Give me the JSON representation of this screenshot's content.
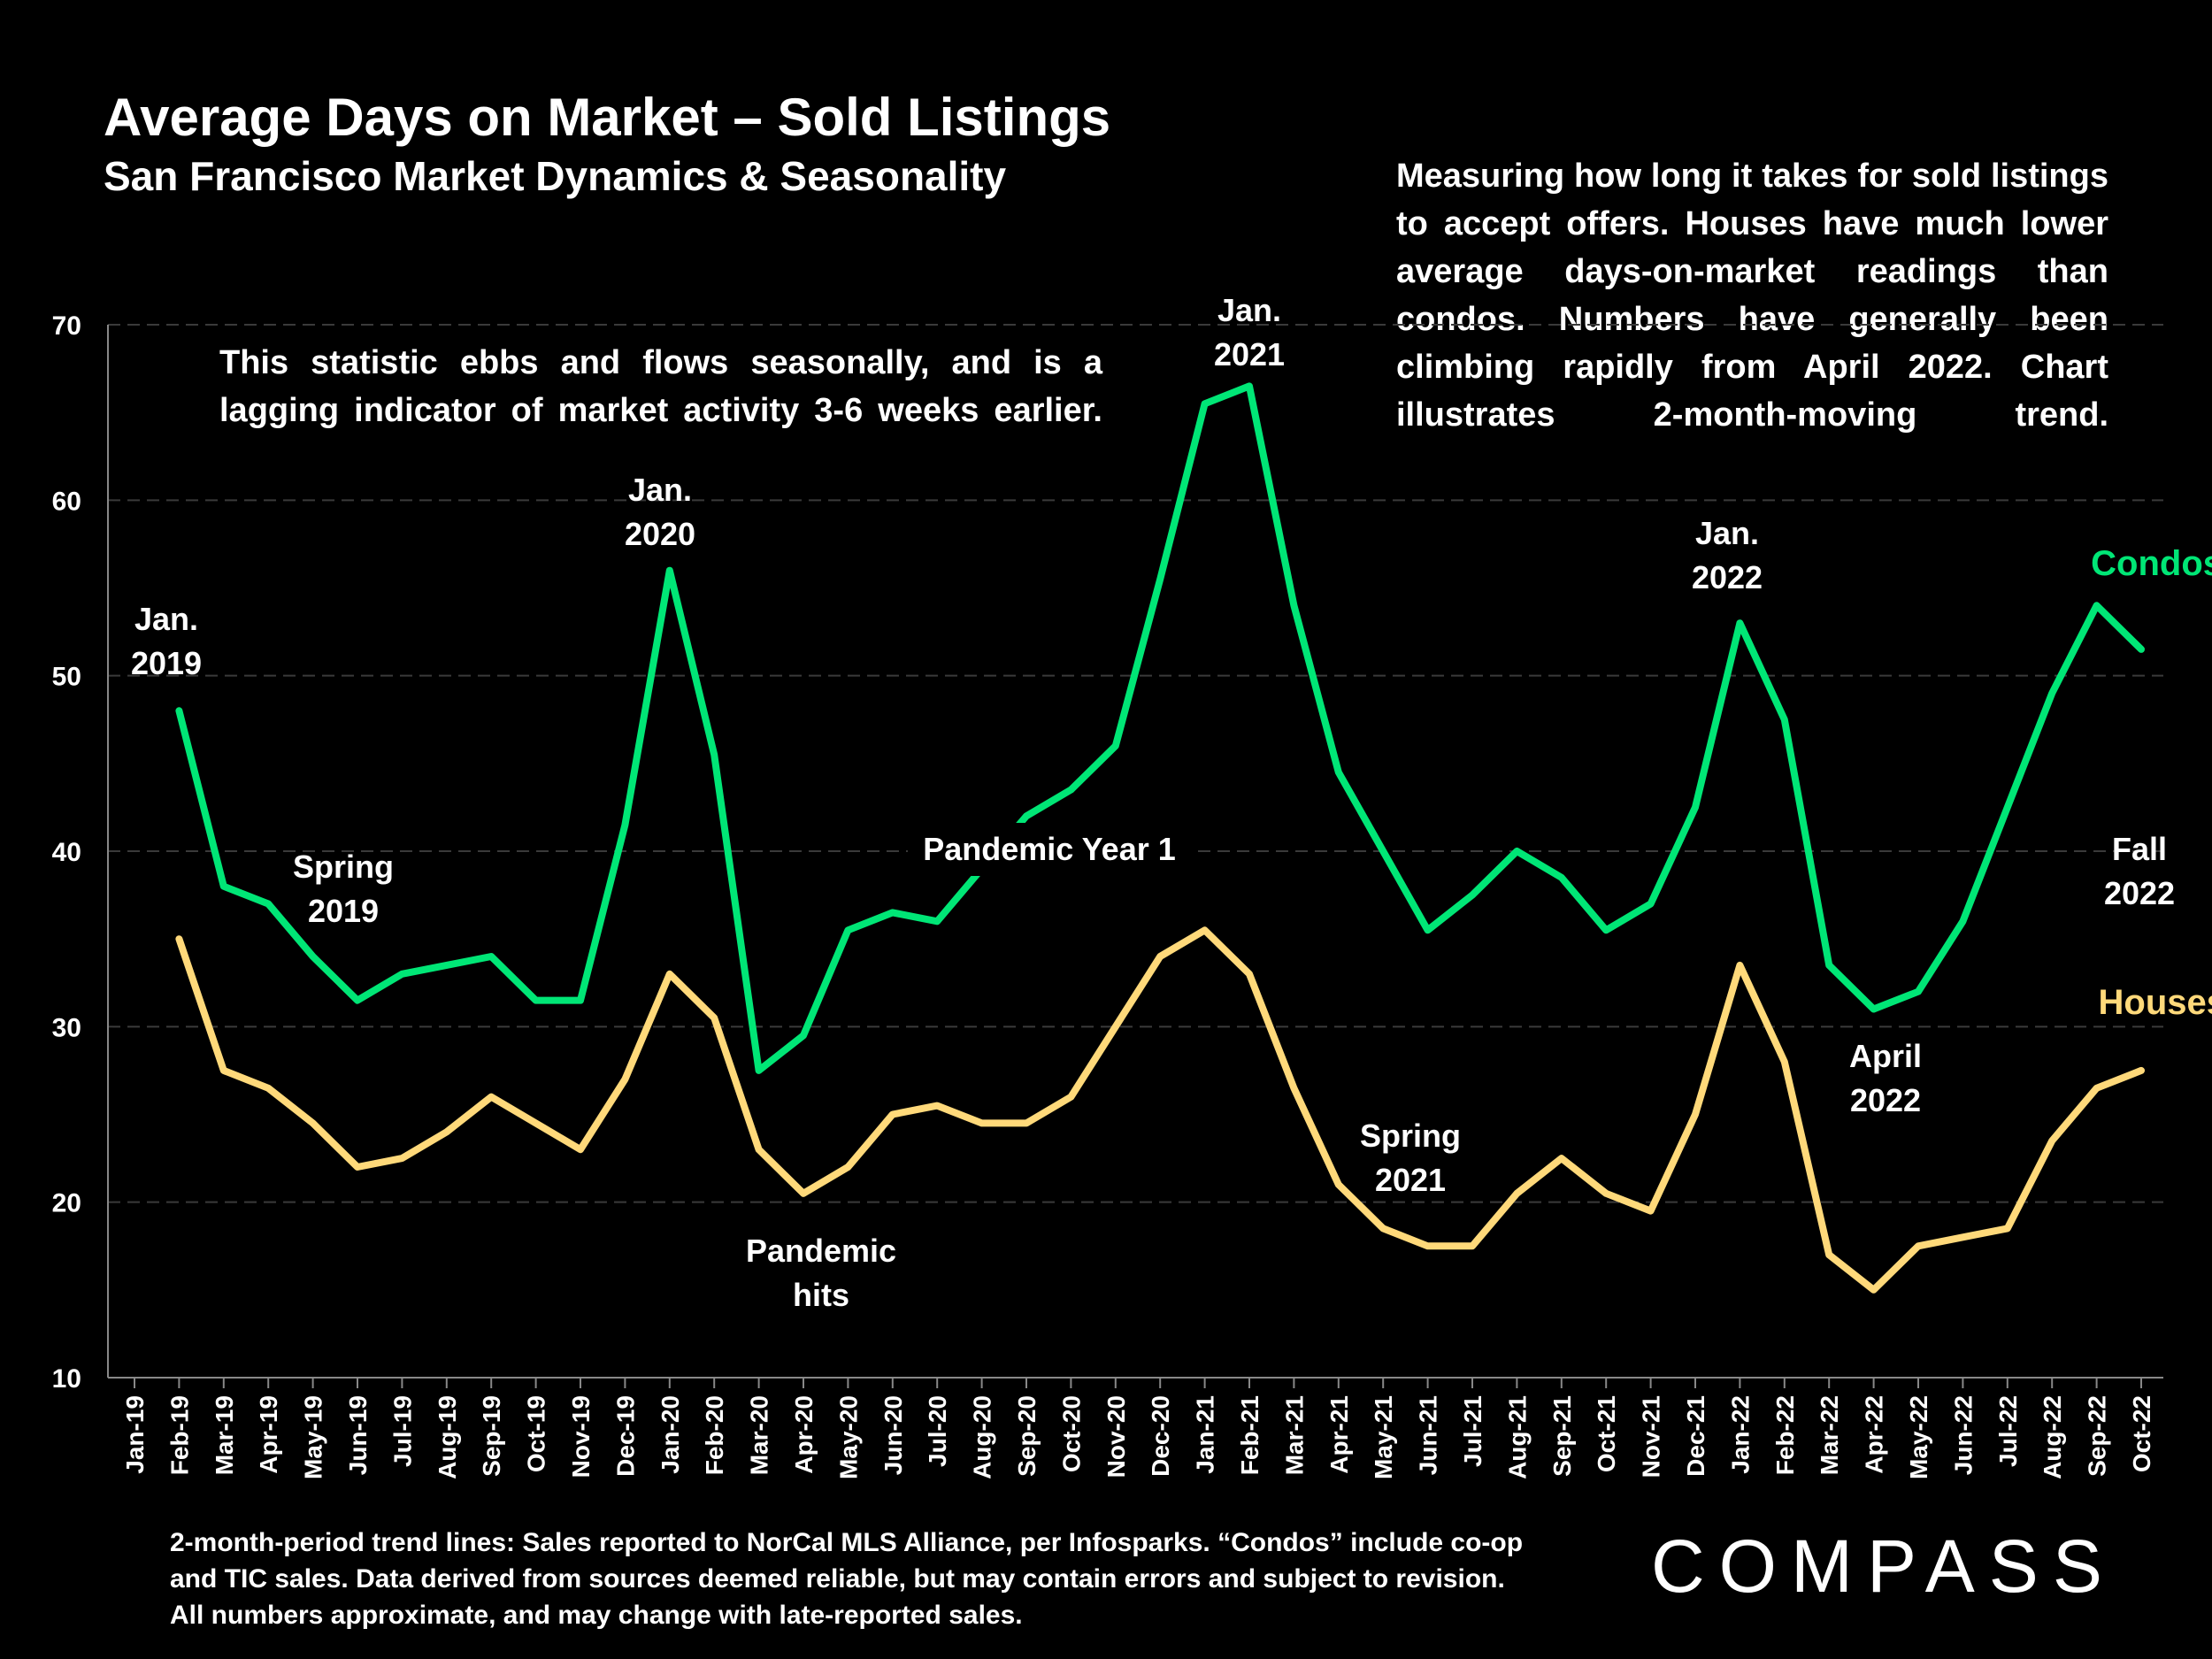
{
  "header": {
    "title": "Average Days on Market – Sold Listings",
    "subtitle": "San Francisco Market Dynamics & Seasonality"
  },
  "notes": {
    "right": "Measuring how long it takes for sold listings to accept offers. Houses have much lower average days-on-market readings than condos. Numbers have generally been climbing rapidly from April 2022. Chart illustrates 2-month-moving trend.",
    "left": "This statistic ebbs and flows seasonally, and is a lagging indicator of market activity 3-6 weeks earlier."
  },
  "footnote": [
    "2-month-period trend lines: Sales reported to NorCal MLS Alliance, per Infosparks. “Condos” include co-op",
    "and TIC sales. Data derived from sources deemed reliable, but may contain errors and subject to revision.",
    "All numbers approximate, and may change with late-reported sales."
  ],
  "brand": "COMPASS",
  "chart_data": {
    "type": "line",
    "categories": [
      "Jan-19",
      "Feb-19",
      "Mar-19",
      "Apr-19",
      "May-19",
      "Jun-19",
      "Jul-19",
      "Aug-19",
      "Sep-19",
      "Oct-19",
      "Nov-19",
      "Dec-19",
      "Jan-20",
      "Feb-20",
      "Mar-20",
      "Apr-20",
      "May-20",
      "Jun-20",
      "Jul-20",
      "Aug-20",
      "Sep-20",
      "Oct-20",
      "Nov-20",
      "Dec-20",
      "Jan-21",
      "Feb-21",
      "Mar-21",
      "Apr-21",
      "May-21",
      "Jun-21",
      "Jul-21",
      "Aug-21",
      "Sep-21",
      "Oct-21",
      "Nov-21",
      "Dec-21",
      "Jan-22",
      "Feb-22",
      "Mar-22",
      "Apr-22",
      "May-22",
      "Jun-22",
      "Jul-22",
      "Aug-22",
      "Sep-22",
      "Oct-22"
    ],
    "series": [
      {
        "name": "Condos",
        "color": "#00e676",
        "values": [
          null,
          48,
          38,
          37,
          34,
          31.5,
          33,
          33.5,
          34,
          31.5,
          31.5,
          41.5,
          56,
          45.5,
          27.5,
          29.5,
          35.5,
          36.5,
          36,
          39,
          42,
          43.5,
          46,
          55.5,
          65.5,
          66.5,
          54,
          44.5,
          40,
          35.5,
          37.5,
          40,
          38.5,
          35.5,
          37,
          42.5,
          53,
          47.5,
          33.5,
          31,
          32,
          36,
          42.5,
          49,
          54,
          51.5
        ]
      },
      {
        "name": "Houses",
        "color": "#ffd97a",
        "values": [
          null,
          35,
          27.5,
          26.5,
          24.5,
          22,
          22.5,
          24,
          26,
          24.5,
          23,
          27,
          33,
          30.5,
          23,
          20.5,
          22,
          25,
          25.5,
          24.5,
          24.5,
          26,
          30,
          34,
          35.5,
          33,
          26.5,
          21,
          18.5,
          17.5,
          17.5,
          20.5,
          22.5,
          20.5,
          19.5,
          25,
          33.5,
          28,
          17,
          15,
          17.5,
          18,
          18.5,
          23.5,
          26.5,
          27.5
        ]
      }
    ],
    "yticks": [
      10,
      20,
      30,
      40,
      50,
      60,
      70
    ],
    "ylim": [
      10,
      70
    ],
    "grid": true,
    "annotations": [
      {
        "text": "Jan.\n2019",
        "color": "#ffffff"
      },
      {
        "text": "Spring\n2019",
        "color": "#ffffff"
      },
      {
        "text": "Jan.\n2020",
        "color": "#ffffff"
      },
      {
        "text": "Pandemic\nhits",
        "color": "#ffffff"
      },
      {
        "text": "Pandemic Year 1",
        "color": "#ffffff"
      },
      {
        "text": "Jan.\n2021",
        "color": "#ffffff"
      },
      {
        "text": "Spring\n2021",
        "color": "#ffffff"
      },
      {
        "text": "Jan.\n2022",
        "color": "#ffffff"
      },
      {
        "text": "April\n2022",
        "color": "#ffffff"
      },
      {
        "text": "Fall\n2022",
        "color": "#ffffff"
      },
      {
        "text": "Condos",
        "color": "#00e676"
      },
      {
        "text": "Houses",
        "color": "#ffd97a"
      }
    ]
  }
}
